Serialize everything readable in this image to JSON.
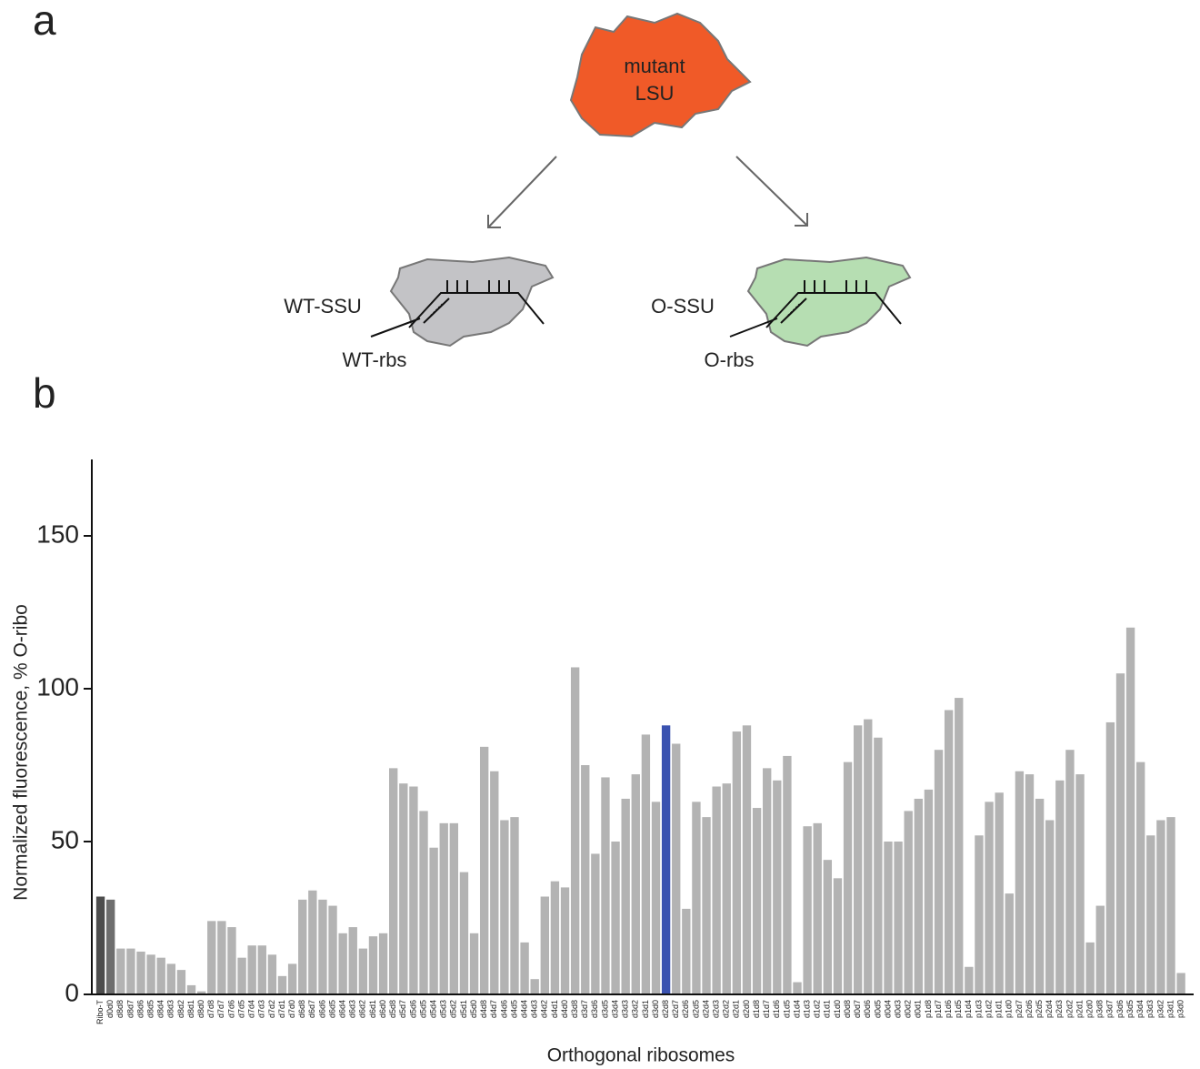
{
  "panel_labels": [
    "a",
    "b"
  ],
  "diagram": {
    "lsu": [
      "mutant",
      "LSU"
    ],
    "wt_ssu": "WT-SSU",
    "wt_rbs": "WT-rbs",
    "o_ssu": "O-SSU",
    "o_rbs": "O-rbs"
  },
  "chart_data": {
    "type": "bar",
    "ylabel": "Normalized fluorescence, % O-ribo",
    "xlabel": "Orthogonal ribosomes",
    "ylim": [
      0,
      175
    ],
    "yticks": [
      0,
      50,
      100,
      150
    ],
    "grid": false,
    "categories": [
      "Ribo-T",
      "d0d0",
      "d8d8",
      "d8d7",
      "d8d6",
      "d8d5",
      "d8d4",
      "d8d3",
      "d8d2",
      "d8d1",
      "d8d0",
      "d7d8",
      "d7d7",
      "d7d6",
      "d7d5",
      "d7d4",
      "d7d3",
      "d7d2",
      "d7d1",
      "d7d0",
      "d6d8",
      "d6d7",
      "d6d6",
      "d6d5",
      "d6d4",
      "d6d3",
      "d6d2",
      "d6d1",
      "d6d0",
      "d5d8",
      "d5d7",
      "d5d6",
      "d5d5",
      "d5d4",
      "d5d3",
      "d5d2",
      "d5d1",
      "d5d0",
      "d4d8",
      "d4d7",
      "d4d6",
      "d4d5",
      "d4d4",
      "d4d3",
      "d4d2",
      "d4d1",
      "d4d0",
      "d3d8",
      "d3d7",
      "d3d6",
      "d3d5",
      "d3d4",
      "d3d3",
      "d3d2",
      "d3d1",
      "d3d0",
      "d2d8",
      "d2d7",
      "d2d6",
      "d2d5",
      "d2d4",
      "d2d3",
      "d2d2",
      "d2d1",
      "d2d0",
      "d1d8",
      "d1d7",
      "d1d6",
      "d1d5",
      "d1d4",
      "d1d3",
      "d1d2",
      "d1d1",
      "d1d0",
      "d0d8",
      "d0d7",
      "d0d6",
      "d0d5",
      "d0d4",
      "d0d3",
      "d0d2",
      "d0d1",
      "p1d8",
      "p1d7",
      "p1d6",
      "p1d5",
      "p1d4",
      "p1d3",
      "p1d2",
      "p1d1",
      "p1d0",
      "p2d7",
      "p2d6",
      "p2d5",
      "p2d4",
      "p2d3",
      "p2d2",
      "p2d1",
      "p2d0",
      "p3d8",
      "p3d7",
      "p3d6",
      "p3d5",
      "p3d4",
      "p3d3",
      "p3d2",
      "p3d1",
      "p3d0"
    ],
    "values": [
      32,
      31,
      15,
      15,
      14,
      13,
      12,
      10,
      8,
      3,
      1,
      24,
      24,
      22,
      12,
      16,
      16,
      13,
      6,
      10,
      31,
      34,
      31,
      29,
      20,
      22,
      15,
      19,
      20,
      74,
      69,
      68,
      60,
      48,
      56,
      56,
      40,
      20,
      81,
      73,
      57,
      58,
      17,
      5,
      32,
      37,
      35,
      107,
      75,
      46,
      71,
      50,
      64,
      72,
      85,
      63,
      88,
      82,
      28,
      63,
      58,
      68,
      69,
      86,
      88,
      61,
      74,
      70,
      78,
      4,
      55,
      56,
      44,
      38,
      76,
      88,
      90,
      84,
      50,
      50,
      60,
      64,
      67,
      80,
      93,
      97,
      9,
      52,
      63,
      66,
      33,
      73,
      72,
      64,
      57,
      70,
      80,
      72,
      17,
      29,
      89,
      105,
      120,
      76,
      52,
      57,
      58,
      7
    ],
    "colors": [
      "#4d4d4d",
      "#6e6e6e",
      "#b3b3b3",
      "#b3b3b3",
      "#b3b3b3",
      "#b3b3b3",
      "#b3b3b3",
      "#b3b3b3",
      "#b3b3b3",
      "#b3b3b3",
      "#b3b3b3",
      "#b3b3b3",
      "#b3b3b3",
      "#b3b3b3",
      "#b3b3b3",
      "#b3b3b3",
      "#b3b3b3",
      "#b3b3b3",
      "#b3b3b3",
      "#b3b3b3",
      "#b3b3b3",
      "#b3b3b3",
      "#b3b3b3",
      "#b3b3b3",
      "#b3b3b3",
      "#b3b3b3",
      "#b3b3b3",
      "#b3b3b3",
      "#b3b3b3",
      "#b3b3b3",
      "#b3b3b3",
      "#b3b3b3",
      "#b3b3b3",
      "#b3b3b3",
      "#b3b3b3",
      "#b3b3b3",
      "#b3b3b3",
      "#b3b3b3",
      "#b3b3b3",
      "#b3b3b3",
      "#b3b3b3",
      "#b3b3b3",
      "#b3b3b3",
      "#b3b3b3",
      "#b3b3b3",
      "#b3b3b3",
      "#b3b3b3",
      "#b3b3b3",
      "#b3b3b3",
      "#b3b3b3",
      "#b3b3b3",
      "#b3b3b3",
      "#b3b3b3",
      "#b3b3b3",
      "#b3b3b3",
      "#b3b3b3",
      "#3a52b0",
      "#b3b3b3",
      "#b3b3b3",
      "#b3b3b3",
      "#b3b3b3",
      "#b3b3b3",
      "#b3b3b3",
      "#b3b3b3",
      "#b3b3b3",
      "#b3b3b3",
      "#b3b3b3",
      "#b3b3b3",
      "#b3b3b3",
      "#b3b3b3",
      "#b3b3b3",
      "#b3b3b3",
      "#b3b3b3",
      "#b3b3b3",
      "#b3b3b3",
      "#b3b3b3",
      "#b3b3b3",
      "#b3b3b3",
      "#b3b3b3",
      "#b3b3b3",
      "#b3b3b3",
      "#b3b3b3",
      "#b3b3b3",
      "#b3b3b3",
      "#b3b3b3",
      "#b3b3b3",
      "#b3b3b3",
      "#b3b3b3",
      "#b3b3b3",
      "#b3b3b3",
      "#b3b3b3",
      "#b3b3b3",
      "#b3b3b3",
      "#b3b3b3",
      "#b3b3b3",
      "#b3b3b3",
      "#b3b3b3",
      "#b3b3b3",
      "#b3b3b3",
      "#b3b3b3",
      "#b3b3b3",
      "#b3b3b3",
      "#b3b3b3",
      "#b3b3b3",
      "#b3b3b3",
      "#b3b3b3",
      "#b3b3b3",
      "#b3b3b3"
    ]
  }
}
